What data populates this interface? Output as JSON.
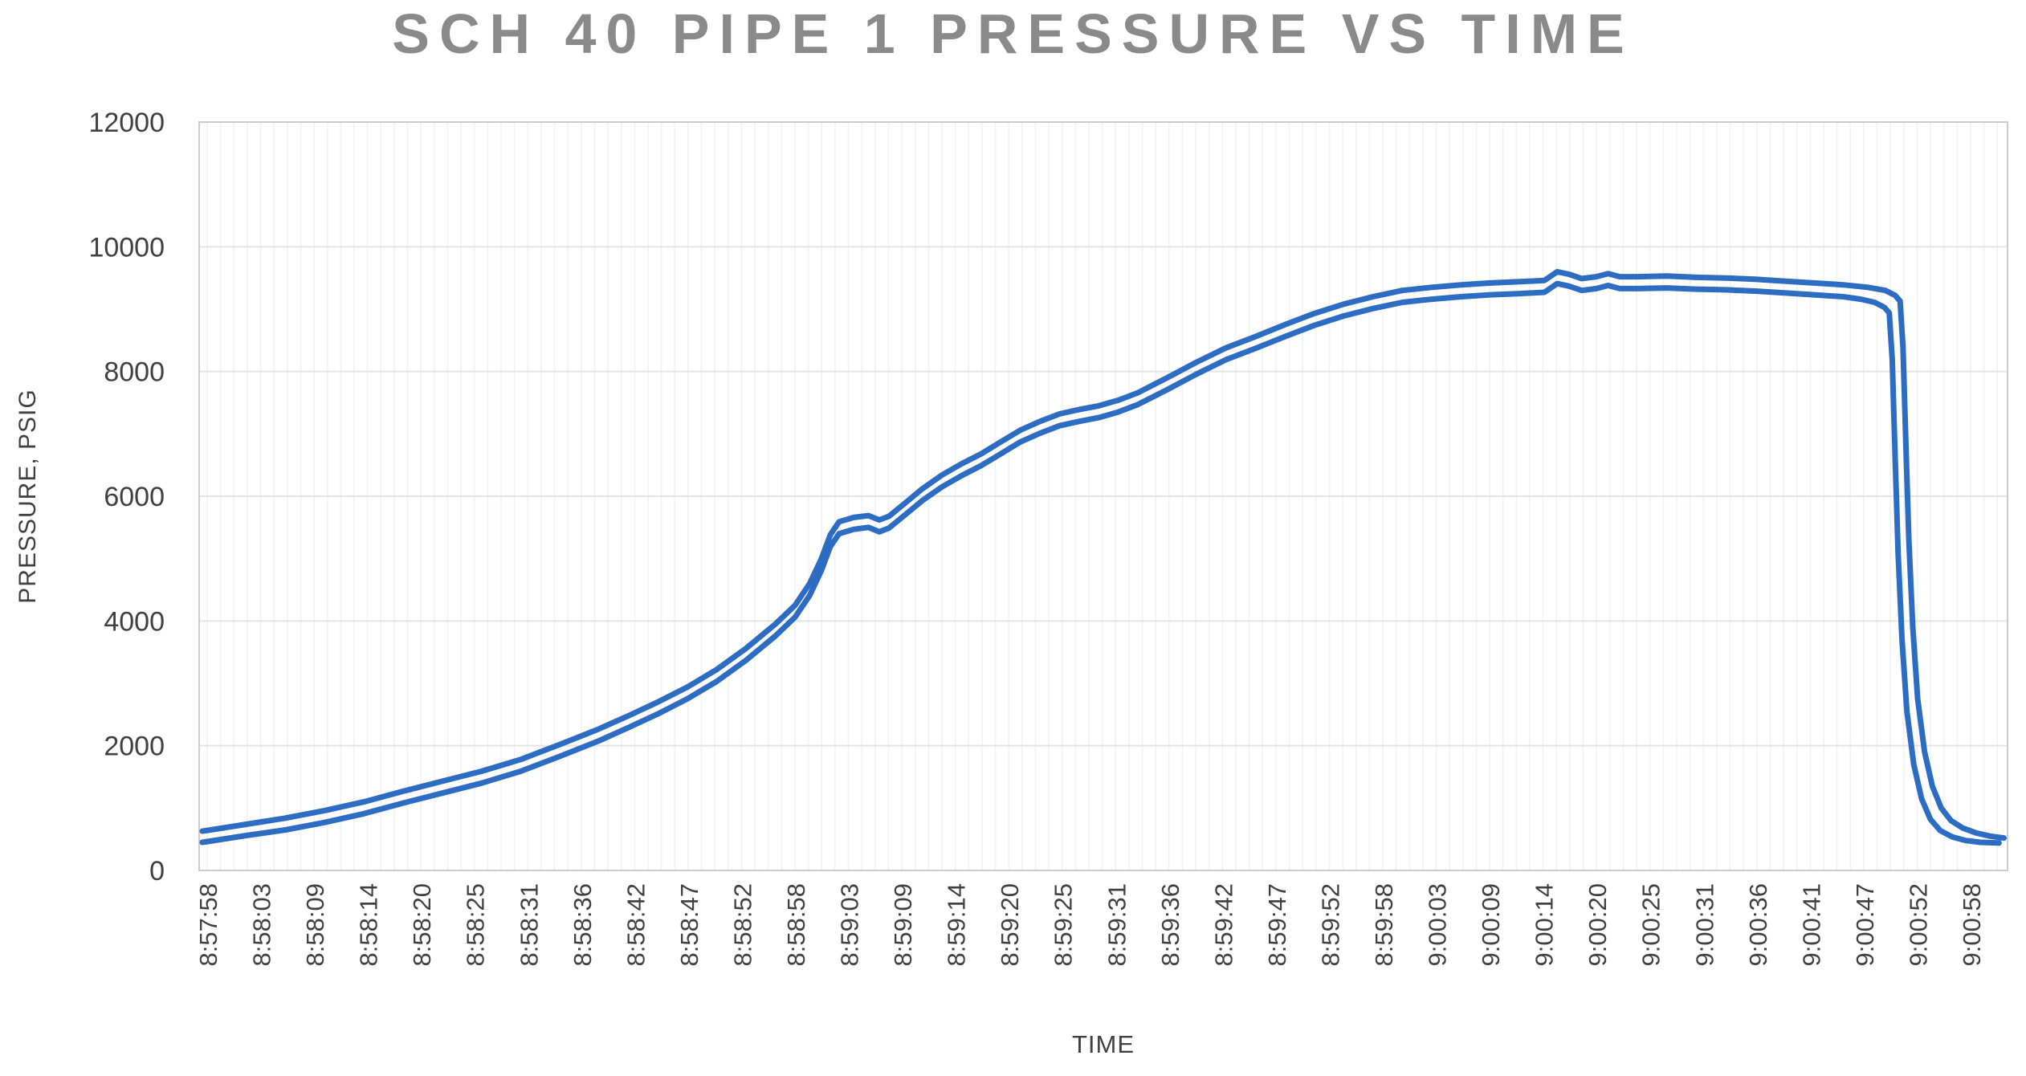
{
  "chart_data": {
    "type": "line",
    "title": "SCH 40 PIPE 1 PRESSURE VS TIME",
    "xlabel": "TIME",
    "ylabel": "PRESSURE, PSIG",
    "ylim": [
      0,
      12000
    ],
    "yticks": [
      0,
      2000,
      4000,
      6000,
      8000,
      10000,
      12000
    ],
    "x_categories": [
      "8:57:58",
      "8:58:03",
      "8:58:09",
      "8:58:14",
      "8:58:20",
      "8:58:25",
      "8:58:31",
      "8:58:36",
      "8:58:42",
      "8:58:47",
      "8:58:52",
      "8:58:58",
      "8:59:03",
      "8:59:09",
      "8:59:14",
      "8:59:20",
      "8:59:25",
      "8:59:31",
      "8:59:36",
      "8:59:42",
      "8:59:47",
      "8:59:52",
      "8:59:58",
      "9:00:03",
      "9:00:09",
      "9:00:14",
      "9:00:20",
      "9:00:25",
      "9:00:31",
      "9:00:36",
      "9:00:41",
      "9:00:47",
      "9:00:52",
      "9:00:58"
    ],
    "x_span_seconds": 180,
    "grid": {
      "h_major": true,
      "v_minor": true,
      "v_minor_per_label_interval": 4
    },
    "legend_position": "none",
    "series": [
      {
        "name": "pressure-trace-upper",
        "points": [
          [
            -0.5,
            630
          ],
          [
            4,
            740
          ],
          [
            8,
            840
          ],
          [
            12,
            960
          ],
          [
            16,
            1100
          ],
          [
            20,
            1270
          ],
          [
            24,
            1430
          ],
          [
            28,
            1590
          ],
          [
            32,
            1780
          ],
          [
            36,
            2020
          ],
          [
            40,
            2270
          ],
          [
            43,
            2480
          ],
          [
            46,
            2700
          ],
          [
            49,
            2940
          ],
          [
            52,
            3220
          ],
          [
            55,
            3560
          ],
          [
            58,
            3950
          ],
          [
            60,
            4250
          ],
          [
            61.5,
            4600
          ],
          [
            62.7,
            5000
          ],
          [
            63.6,
            5380
          ],
          [
            64.5,
            5590
          ],
          [
            66,
            5660
          ],
          [
            67.5,
            5690
          ],
          [
            68.6,
            5620
          ],
          [
            69.6,
            5680
          ],
          [
            71,
            5860
          ],
          [
            73,
            6120
          ],
          [
            75,
            6340
          ],
          [
            77,
            6520
          ],
          [
            79,
            6680
          ],
          [
            81,
            6870
          ],
          [
            83,
            7060
          ],
          [
            85,
            7200
          ],
          [
            87,
            7320
          ],
          [
            89,
            7390
          ],
          [
            91,
            7450
          ],
          [
            93,
            7540
          ],
          [
            95,
            7660
          ],
          [
            98,
            7900
          ],
          [
            101,
            8150
          ],
          [
            104,
            8380
          ],
          [
            107,
            8560
          ],
          [
            110,
            8750
          ],
          [
            113,
            8930
          ],
          [
            116,
            9080
          ],
          [
            119,
            9200
          ],
          [
            122,
            9300
          ],
          [
            125,
            9350
          ],
          [
            128,
            9390
          ],
          [
            131,
            9420
          ],
          [
            134,
            9440
          ],
          [
            136.5,
            9460
          ],
          [
            137.8,
            9600
          ],
          [
            139,
            9560
          ],
          [
            140.3,
            9490
          ],
          [
            141.8,
            9520
          ],
          [
            143,
            9570
          ],
          [
            144.2,
            9520
          ],
          [
            146,
            9520
          ],
          [
            149,
            9530
          ],
          [
            152,
            9510
          ],
          [
            155,
            9500
          ],
          [
            158,
            9480
          ],
          [
            161,
            9450
          ],
          [
            164,
            9420
          ],
          [
            167,
            9390
          ],
          [
            169.5,
            9350
          ],
          [
            171.3,
            9300
          ],
          [
            172.3,
            9220
          ],
          [
            172.8,
            9130
          ],
          [
            173.1,
            8400
          ],
          [
            173.4,
            6800
          ],
          [
            173.7,
            5300
          ],
          [
            174.1,
            3900
          ],
          [
            174.6,
            2750
          ],
          [
            175.3,
            1900
          ],
          [
            176.1,
            1350
          ],
          [
            177,
            1000
          ],
          [
            178,
            800
          ],
          [
            179.2,
            680
          ],
          [
            180.6,
            600
          ],
          [
            182,
            550
          ],
          [
            183.4,
            520
          ]
        ]
      },
      {
        "name": "pressure-trace-lower",
        "points": [
          [
            -0.5,
            450
          ],
          [
            4,
            560
          ],
          [
            8,
            650
          ],
          [
            12,
            770
          ],
          [
            16,
            910
          ],
          [
            20,
            1080
          ],
          [
            24,
            1240
          ],
          [
            28,
            1400
          ],
          [
            32,
            1590
          ],
          [
            36,
            1830
          ],
          [
            40,
            2080
          ],
          [
            43,
            2290
          ],
          [
            46,
            2510
          ],
          [
            49,
            2750
          ],
          [
            52,
            3030
          ],
          [
            55,
            3370
          ],
          [
            58,
            3760
          ],
          [
            60,
            4060
          ],
          [
            61.5,
            4410
          ],
          [
            62.7,
            4810
          ],
          [
            63.6,
            5190
          ],
          [
            64.5,
            5400
          ],
          [
            66,
            5470
          ],
          [
            67.5,
            5500
          ],
          [
            68.6,
            5430
          ],
          [
            69.6,
            5490
          ],
          [
            71,
            5670
          ],
          [
            73,
            5930
          ],
          [
            75,
            6150
          ],
          [
            77,
            6330
          ],
          [
            79,
            6490
          ],
          [
            81,
            6680
          ],
          [
            83,
            6870
          ],
          [
            85,
            7010
          ],
          [
            87,
            7130
          ],
          [
            89,
            7200
          ],
          [
            91,
            7260
          ],
          [
            93,
            7350
          ],
          [
            95,
            7470
          ],
          [
            98,
            7710
          ],
          [
            101,
            7960
          ],
          [
            104,
            8190
          ],
          [
            107,
            8370
          ],
          [
            110,
            8560
          ],
          [
            113,
            8740
          ],
          [
            116,
            8890
          ],
          [
            119,
            9010
          ],
          [
            122,
            9110
          ],
          [
            125,
            9160
          ],
          [
            128,
            9200
          ],
          [
            131,
            9230
          ],
          [
            134,
            9250
          ],
          [
            136.5,
            9270
          ],
          [
            137.8,
            9410
          ],
          [
            139,
            9370
          ],
          [
            140.3,
            9300
          ],
          [
            141.8,
            9330
          ],
          [
            143,
            9380
          ],
          [
            144.2,
            9330
          ],
          [
            146,
            9330
          ],
          [
            149,
            9340
          ],
          [
            152,
            9320
          ],
          [
            155,
            9310
          ],
          [
            158,
            9290
          ],
          [
            161,
            9260
          ],
          [
            164,
            9230
          ],
          [
            167,
            9200
          ],
          [
            168.8,
            9160
          ],
          [
            170.2,
            9110
          ],
          [
            171.2,
            9030
          ],
          [
            171.7,
            8940
          ],
          [
            172.0,
            8200
          ],
          [
            172.3,
            6600
          ],
          [
            172.6,
            5100
          ],
          [
            173.0,
            3700
          ],
          [
            173.5,
            2550
          ],
          [
            174.2,
            1700
          ],
          [
            175.0,
            1150
          ],
          [
            175.9,
            820
          ],
          [
            176.9,
            640
          ],
          [
            178.1,
            540
          ],
          [
            179.5,
            480
          ],
          [
            181,
            450
          ],
          [
            182.9,
            440
          ]
        ]
      }
    ]
  },
  "style_colors": {
    "series_line": "#2d6cc3",
    "title_text": "#8a8a8a",
    "axis_text": "#404040",
    "h_gridline": "#e4e4e4",
    "v_gridline": "#f2f2f2",
    "plot_border": "#cbcbcb",
    "background": "#ffffff"
  }
}
